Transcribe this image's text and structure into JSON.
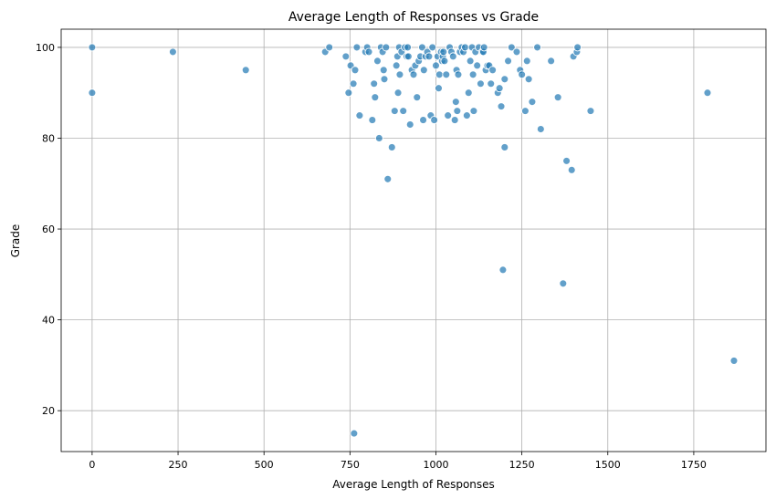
{
  "chart_data": {
    "type": "scatter",
    "title": "Average Length of Responses vs Grade",
    "xlabel": "Average Length of Responses",
    "ylabel": "Grade",
    "xlim": [
      -90,
      1960
    ],
    "ylim": [
      11,
      104
    ],
    "xticks": [
      0,
      250,
      500,
      750,
      1000,
      1250,
      1500,
      1750
    ],
    "yticks": [
      20,
      40,
      60,
      80,
      100
    ],
    "grid": true,
    "point_color": "#1f77b4",
    "point_alpha": 0.7,
    "points": [
      [
        0,
        100
      ],
      [
        0,
        90
      ],
      [
        235,
        99
      ],
      [
        447,
        95
      ],
      [
        678,
        99
      ],
      [
        690,
        100
      ],
      [
        738,
        98
      ],
      [
        746,
        90
      ],
      [
        752,
        96
      ],
      [
        760,
        92
      ],
      [
        765,
        95
      ],
      [
        770,
        100
      ],
      [
        778,
        85
      ],
      [
        762,
        15
      ],
      [
        795,
        99
      ],
      [
        800,
        100
      ],
      [
        805,
        99
      ],
      [
        815,
        84
      ],
      [
        820,
        92
      ],
      [
        823,
        89
      ],
      [
        830,
        97
      ],
      [
        835,
        80
      ],
      [
        840,
        100
      ],
      [
        845,
        99
      ],
      [
        848,
        95
      ],
      [
        850,
        93
      ],
      [
        855,
        100
      ],
      [
        860,
        71
      ],
      [
        872,
        78
      ],
      [
        880,
        86
      ],
      [
        885,
        96
      ],
      [
        888,
        98
      ],
      [
        890,
        90
      ],
      [
        893,
        100
      ],
      [
        895,
        94
      ],
      [
        900,
        99
      ],
      [
        905,
        86
      ],
      [
        910,
        100
      ],
      [
        915,
        98
      ],
      [
        918,
        100
      ],
      [
        920,
        98
      ],
      [
        925,
        83
      ],
      [
        930,
        95
      ],
      [
        935,
        94
      ],
      [
        940,
        96
      ],
      [
        945,
        89
      ],
      [
        950,
        97
      ],
      [
        955,
        98
      ],
      [
        960,
        100
      ],
      [
        963,
        84
      ],
      [
        965,
        95
      ],
      [
        970,
        98
      ],
      [
        975,
        99
      ],
      [
        980,
        98
      ],
      [
        985,
        85
      ],
      [
        990,
        100
      ],
      [
        995,
        84
      ],
      [
        1000,
        96
      ],
      [
        1005,
        98
      ],
      [
        1008,
        91
      ],
      [
        1010,
        94
      ],
      [
        1015,
        99
      ],
      [
        1018,
        97
      ],
      [
        1020,
        98
      ],
      [
        1022,
        99
      ],
      [
        1025,
        97
      ],
      [
        1030,
        94
      ],
      [
        1035,
        85
      ],
      [
        1040,
        100
      ],
      [
        1045,
        99
      ],
      [
        1050,
        98
      ],
      [
        1055,
        84
      ],
      [
        1058,
        88
      ],
      [
        1060,
        95
      ],
      [
        1062,
        86
      ],
      [
        1065,
        94
      ],
      [
        1070,
        99
      ],
      [
        1075,
        100
      ],
      [
        1080,
        99
      ],
      [
        1085,
        100
      ],
      [
        1090,
        85
      ],
      [
        1095,
        90
      ],
      [
        1100,
        97
      ],
      [
        1105,
        100
      ],
      [
        1108,
        94
      ],
      [
        1110,
        86
      ],
      [
        1115,
        99
      ],
      [
        1120,
        96
      ],
      [
        1125,
        100
      ],
      [
        1130,
        92
      ],
      [
        1135,
        99
      ],
      [
        1138,
        99
      ],
      [
        1140,
        100
      ],
      [
        1145,
        95
      ],
      [
        1150,
        96
      ],
      [
        1155,
        96
      ],
      [
        1160,
        92
      ],
      [
        1165,
        95
      ],
      [
        1180,
        90
      ],
      [
        1185,
        91
      ],
      [
        1190,
        87
      ],
      [
        1200,
        93
      ],
      [
        1210,
        97
      ],
      [
        1220,
        100
      ],
      [
        1235,
        99
      ],
      [
        1245,
        95
      ],
      [
        1250,
        94
      ],
      [
        1260,
        86
      ],
      [
        1265,
        97
      ],
      [
        1270,
        93
      ],
      [
        1280,
        88
      ],
      [
        1295,
        100
      ],
      [
        1305,
        82
      ],
      [
        1335,
        97
      ],
      [
        1355,
        89
      ],
      [
        1380,
        75
      ],
      [
        1395,
        73
      ],
      [
        1400,
        98
      ],
      [
        1410,
        99
      ],
      [
        1412,
        100
      ],
      [
        1450,
        86
      ],
      [
        1790,
        90
      ],
      [
        1195,
        51
      ],
      [
        1200,
        78
      ],
      [
        1370,
        48
      ],
      [
        1867,
        31
      ]
    ]
  }
}
